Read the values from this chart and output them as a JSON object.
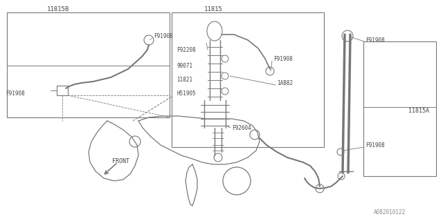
{
  "bg_color": "#ffffff",
  "lc": "#777777",
  "tc": "#444444",
  "diagram_id": "A082010122",
  "figsize": [
    6.4,
    3.2
  ],
  "dpi": 100,
  "xlim": [
    0,
    640
  ],
  "ylim": [
    0,
    320
  ]
}
